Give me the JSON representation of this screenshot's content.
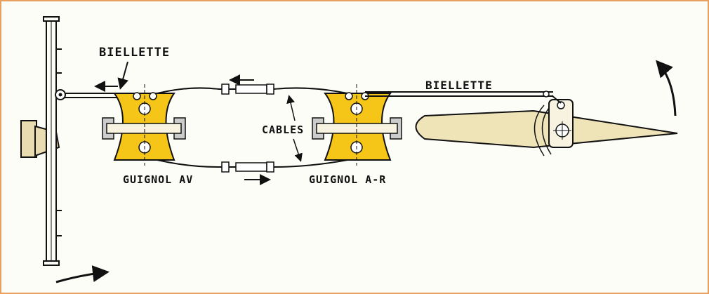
{
  "labels": {
    "biellette_front": "BIELLETTE",
    "biellette_rear": "BIELLETTE",
    "cables": "CABLES",
    "guignol_front": "GUIGNOL AV",
    "guignol_rear": "GUIGNOL A-R"
  },
  "colors": {
    "guignol_fill": "#f5c518",
    "wing_fill": "#efe3b8",
    "bracket_fill": "#e9dcb0",
    "line": "#111111",
    "frame_border": "#e8a060"
  }
}
